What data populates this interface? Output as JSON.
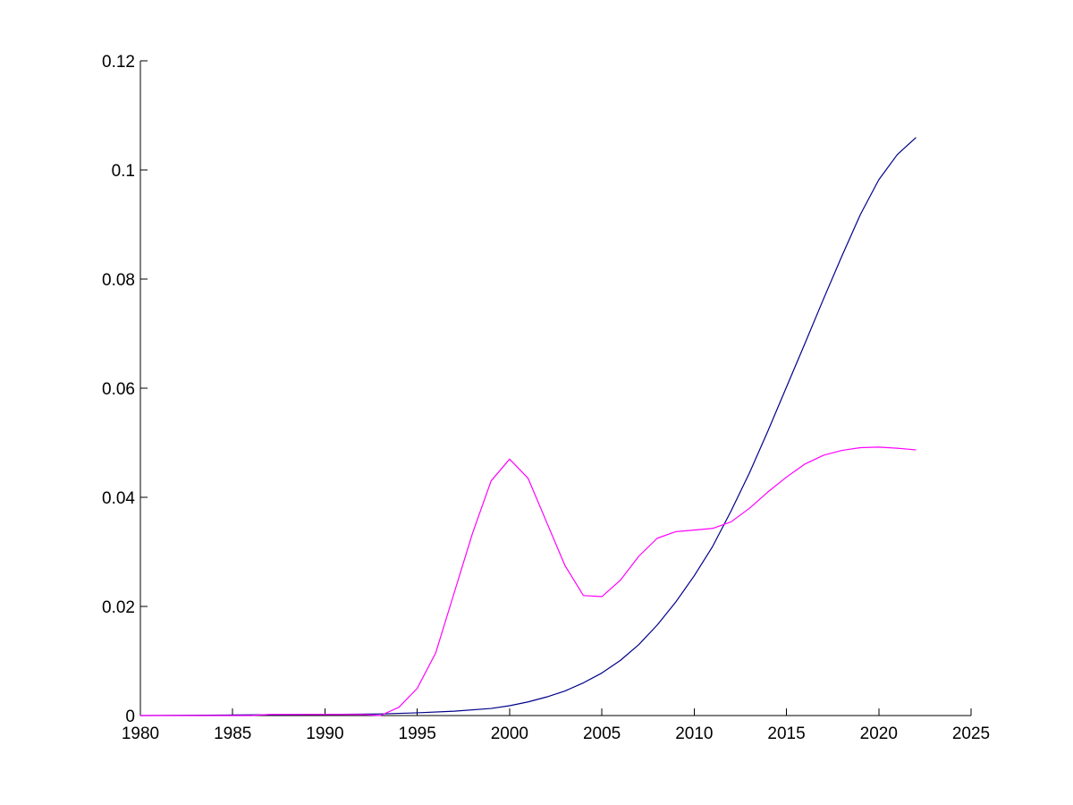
{
  "chart_data": {
    "type": "line",
    "title": "",
    "xlabel": "",
    "ylabel": "",
    "xlim": [
      1980,
      2025
    ],
    "ylim": [
      0,
      0.12
    ],
    "x_ticks": [
      1980,
      1985,
      1990,
      1995,
      2000,
      2005,
      2010,
      2015,
      2020,
      2025
    ],
    "x_tick_labels": [
      "1980",
      "1985",
      "1990",
      "1995",
      "2000",
      "2005",
      "2010",
      "2015",
      "2020",
      "2025"
    ],
    "y_ticks": [
      0,
      0.02,
      0.04,
      0.06,
      0.08,
      0.1,
      0.12
    ],
    "y_tick_labels": [
      "0",
      "0.02",
      "0.04",
      "0.06",
      "0.08",
      "0.1",
      "0.12"
    ],
    "grid": false,
    "legend": "none",
    "series": [
      {
        "color": "#00008b",
        "points": [
          [
            1980,
            0
          ],
          [
            1985,
            0.0001
          ],
          [
            1990,
            0.0002
          ],
          [
            1993,
            0.0003
          ],
          [
            1995,
            0.0005
          ],
          [
            1997,
            0.0008
          ],
          [
            1999,
            0.0013
          ],
          [
            2000,
            0.0018
          ],
          [
            2001,
            0.0025
          ],
          [
            2002,
            0.0034
          ],
          [
            2003,
            0.0045
          ],
          [
            2004,
            0.006
          ],
          [
            2005,
            0.0078
          ],
          [
            2006,
            0.0101
          ],
          [
            2007,
            0.013
          ],
          [
            2008,
            0.0166
          ],
          [
            2009,
            0.0208
          ],
          [
            2010,
            0.0256
          ],
          [
            2011,
            0.031
          ],
          [
            2012,
            0.0375
          ],
          [
            2013,
            0.0445
          ],
          [
            2014,
            0.0522
          ],
          [
            2015,
            0.0602
          ],
          [
            2016,
            0.0682
          ],
          [
            2017,
            0.0763
          ],
          [
            2018,
            0.0842
          ],
          [
            2019,
            0.0918
          ],
          [
            2020,
            0.0982
          ],
          [
            2021,
            0.1028
          ],
          [
            2022,
            0.1059
          ]
        ]
      },
      {
        "color": "#ff00ff",
        "points": [
          [
            1980,
            0
          ],
          [
            1986,
            0
          ],
          [
            1987,
            0.0002
          ],
          [
            1992,
            0.0002
          ],
          [
            1993,
            0
          ],
          [
            1994,
            0.0015
          ],
          [
            1995,
            0.005
          ],
          [
            1996,
            0.0115
          ],
          [
            1997,
            0.0225
          ],
          [
            1998,
            0.0335
          ],
          [
            1999,
            0.043
          ],
          [
            2000,
            0.047
          ],
          [
            2001,
            0.0435
          ],
          [
            2002,
            0.0355
          ],
          [
            2003,
            0.0275
          ],
          [
            2004,
            0.022
          ],
          [
            2005,
            0.0218
          ],
          [
            2006,
            0.0248
          ],
          [
            2007,
            0.0292
          ],
          [
            2008,
            0.0325
          ],
          [
            2009,
            0.0337
          ],
          [
            2010,
            0.034
          ],
          [
            2011,
            0.0343
          ],
          [
            2012,
            0.0355
          ],
          [
            2013,
            0.038
          ],
          [
            2014,
            0.041
          ],
          [
            2015,
            0.0437
          ],
          [
            2016,
            0.0461
          ],
          [
            2017,
            0.0477
          ],
          [
            2018,
            0.0486
          ],
          [
            2019,
            0.0491
          ],
          [
            2020,
            0.0492
          ],
          [
            2021,
            0.049
          ],
          [
            2022,
            0.0487
          ]
        ]
      }
    ]
  }
}
